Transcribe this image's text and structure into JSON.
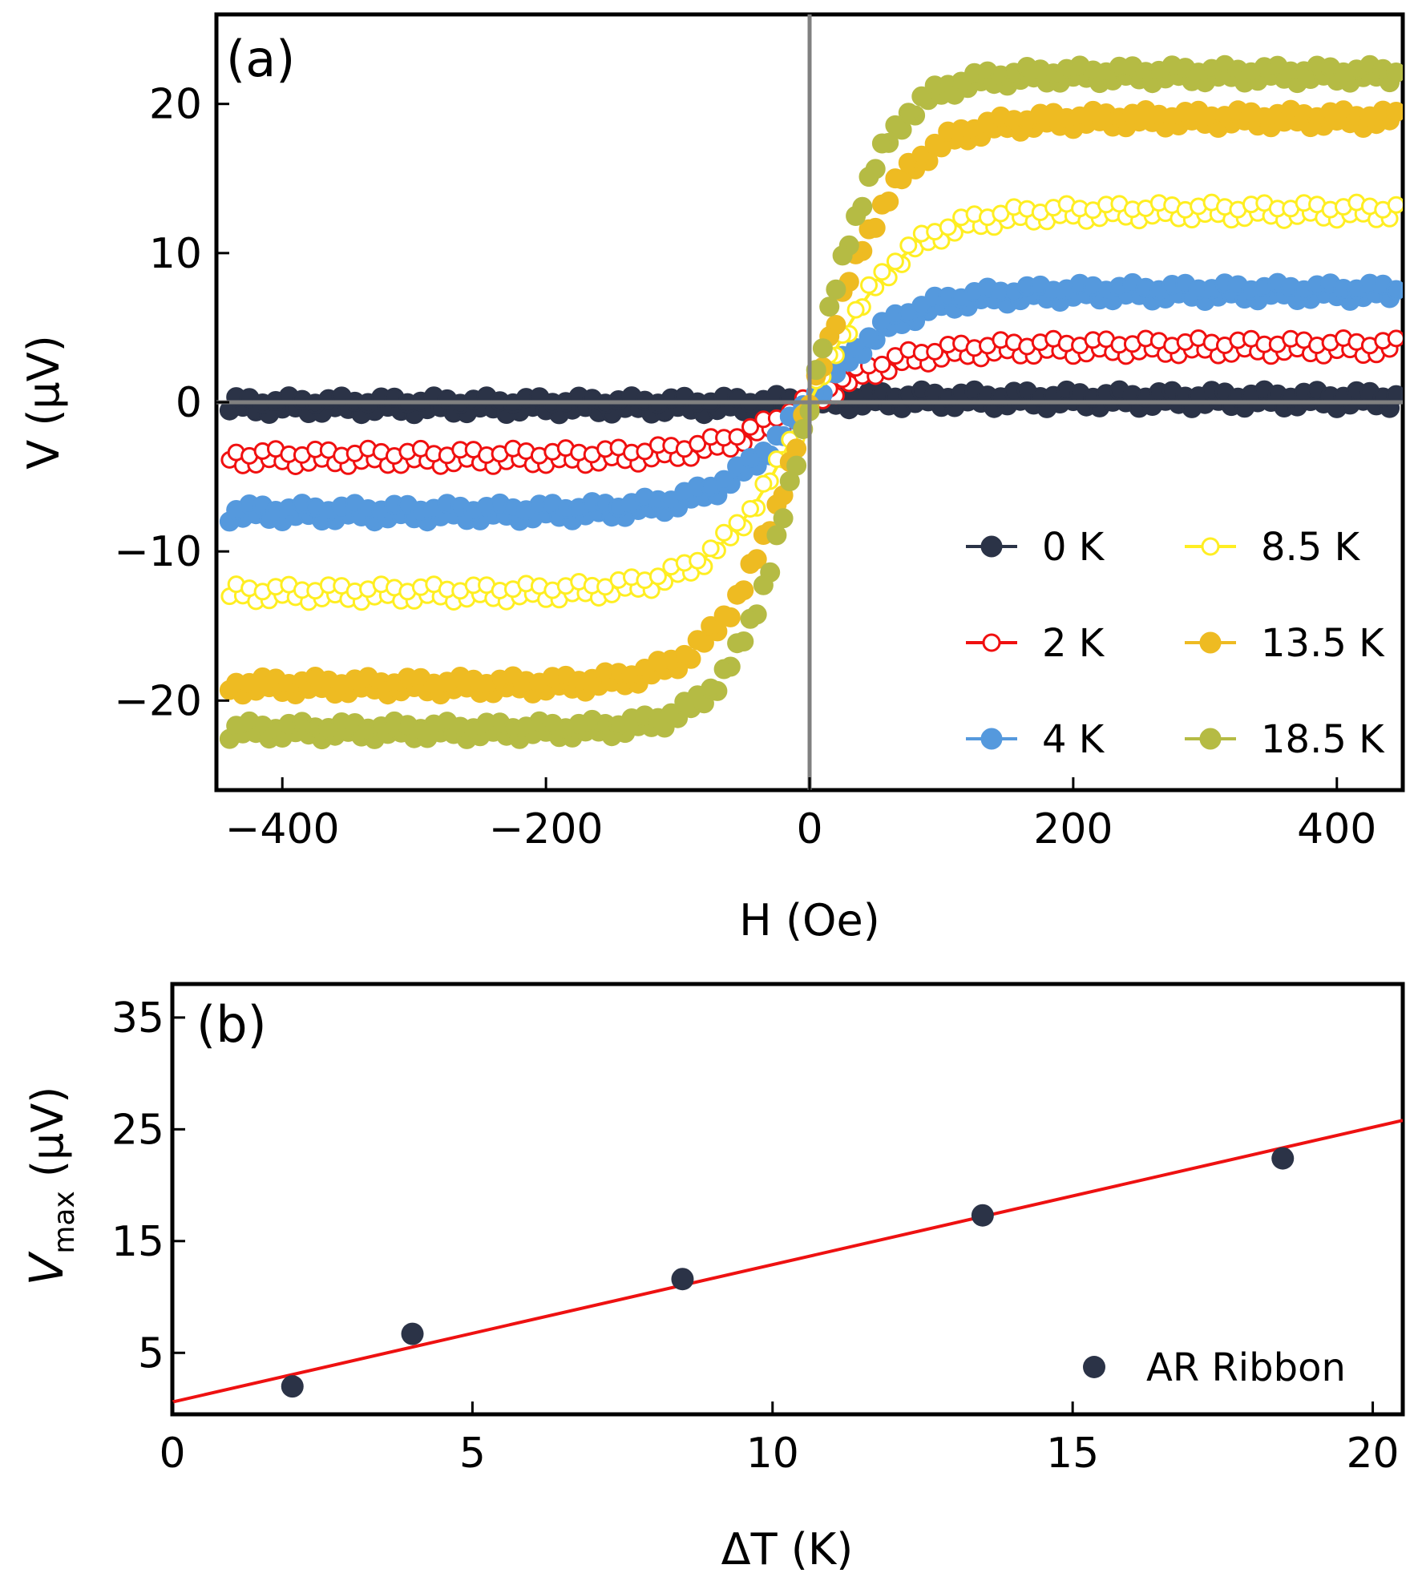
{
  "chart_data": [
    {
      "panel": "(a)",
      "type": "scatter",
      "xlabel": "H (Oe)",
      "ylabel": "V (μV)",
      "xlim": [
        -450,
        450
      ],
      "ylim": [
        -26,
        26
      ],
      "xticks": [
        -400,
        -200,
        0,
        200,
        400
      ],
      "yticks": [
        -20,
        -10,
        0,
        10,
        20
      ],
      "xtick_labels": [
        "−400",
        "−200",
        "0",
        "200",
        "400"
      ],
      "ytick_labels": [
        "−20",
        "−10",
        "0",
        "10",
        "20"
      ],
      "reference_lines": {
        "x": 0,
        "y": 0
      },
      "legend": {
        "placement": "bottom-right",
        "columns": 2
      },
      "series": [
        {
          "name": "0 K",
          "color": "#2b3347",
          "marker": "filled",
          "saturation": 0.2,
          "width_oe": 40
        },
        {
          "name": "2 K",
          "color": "#f01010",
          "marker": "open",
          "saturation": 3.7,
          "width_oe": 70
        },
        {
          "name": "4 K",
          "color": "#5599dd",
          "marker": "filled",
          "saturation": 7.4,
          "width_oe": 70
        },
        {
          "name": "8.5 K",
          "color": "#ffee22",
          "marker": "open",
          "saturation": 12.8,
          "width_oe": 70
        },
        {
          "name": "13.5 K",
          "color": "#eebb22",
          "marker": "filled",
          "saturation": 19.0,
          "width_oe": 65
        },
        {
          "name": "18.5 K",
          "color": "#b5bb44",
          "marker": "filled",
          "saturation": 22.0,
          "width_oe": 55
        }
      ]
    },
    {
      "panel": "(b)",
      "type": "scatter",
      "xlabel": "ΔT (K)",
      "ylabel_main": "V",
      "ylabel_sub": "max",
      "ylabel_unit": " (μV)",
      "xlim": [
        0,
        20.5
      ],
      "ylim": [
        -0.5,
        38
      ],
      "xticks": [
        0,
        5,
        10,
        15,
        20
      ],
      "yticks": [
        5,
        15,
        25,
        35
      ],
      "xtick_labels": [
        "0",
        "5",
        "10",
        "15",
        "20"
      ],
      "ytick_labels": [
        "5",
        "15",
        "25",
        "35"
      ],
      "points": {
        "name": "AR Ribbon",
        "color": "#2b3347",
        "x": [
          2,
          4,
          8.5,
          13.5,
          18.5
        ],
        "y": [
          2.0,
          6.7,
          11.6,
          17.3,
          22.4
        ]
      },
      "fit_line": {
        "color": "#ee1111",
        "x": [
          0,
          20.5
        ],
        "y": [
          0.6,
          25.8
        ]
      },
      "legend": {
        "placement": "bottom-right"
      }
    }
  ]
}
